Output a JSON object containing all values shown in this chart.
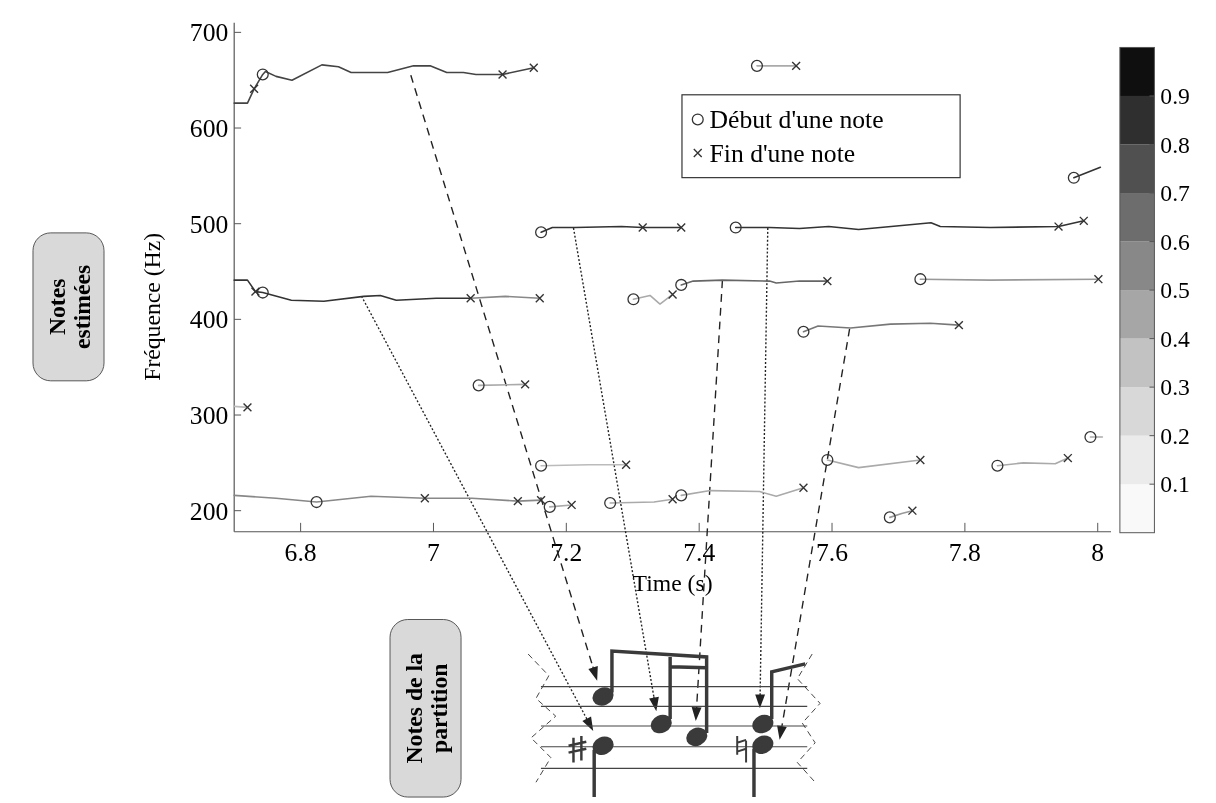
{
  "chart_data": {
    "type": "line",
    "xlabel": "Time (s)",
    "ylabel": "Fréquence (Hz)",
    "xlim": [
      6.7,
      8.02
    ],
    "ylim": [
      178,
      710
    ],
    "xticks": [
      6.8,
      7,
      7.2,
      7.4,
      7.6,
      7.8,
      8
    ],
    "yticks": [
      200,
      300,
      400,
      500,
      600,
      700
    ],
    "clim": [
      0,
      1
    ],
    "cticks": [
      0.1,
      0.2,
      0.3,
      0.4,
      0.5,
      0.6,
      0.7,
      0.8,
      0.9
    ],
    "legend": "top right",
    "grid": false,
    "annotations": [
      "Notes estimées",
      "Notes de la partition"
    ],
    "series": [
      {
        "type": "line",
        "color": "#444444",
        "x": [
          6.7,
          6.72,
          6.73,
          6.743,
          6.747,
          6.763,
          6.787,
          6.832,
          6.857,
          6.876,
          6.931,
          6.97,
          6.995,
          7.02,
          7.045,
          7.064,
          7.104,
          7.151
        ],
        "values": [
          626,
          626,
          641,
          656,
          659,
          654,
          650,
          666,
          664,
          658,
          658,
          665,
          665,
          658,
          658,
          656,
          656,
          663
        ]
      },
      {
        "type": "line",
        "color": "#333333",
        "x": [
          6.7,
          6.72,
          6.732,
          6.743,
          6.786,
          6.835,
          6.895,
          6.92,
          6.944,
          7.004,
          7.056
        ],
        "values": [
          441,
          441,
          429,
          428,
          420,
          419,
          424,
          425,
          420,
          422,
          422
        ]
      },
      {
        "type": "line",
        "color": "#888888",
        "x": [
          7.056,
          7.108,
          7.16
        ],
        "values": [
          422,
          424,
          422
        ]
      },
      {
        "type": "line",
        "color": "#aaaaaa",
        "x": [
          7.487,
          7.546
        ],
        "values": [
          665,
          665
        ]
      },
      {
        "type": "line",
        "color": "#333333",
        "x": [
          7.162,
          7.179,
          7.213,
          7.283,
          7.315,
          7.373
        ],
        "values": [
          491,
          496,
          496,
          497,
          496,
          496
        ]
      },
      {
        "type": "line",
        "color": "#333333",
        "x": [
          7.455,
          7.506,
          7.551,
          7.595,
          7.64,
          7.689,
          7.749,
          7.763,
          7.838,
          7.941,
          7.979
        ],
        "values": [
          496,
          496,
          495,
          497,
          494,
          497,
          501,
          497,
          496,
          497,
          503
        ]
      },
      {
        "type": "line",
        "color": "#333333",
        "x": [
          7.964,
          8.004
        ],
        "values": [
          548,
          559
        ]
      },
      {
        "type": "line",
        "color": "#666666",
        "x": [
          7.373,
          7.391,
          7.435,
          7.506,
          7.516,
          7.551,
          7.593
        ],
        "values": [
          436,
          440,
          441,
          440,
          438,
          440,
          440
        ]
      },
      {
        "type": "line",
        "color": "#999999",
        "x": [
          7.733,
          7.838,
          8.001
        ],
        "values": [
          442,
          441,
          442
        ]
      },
      {
        "type": "line",
        "color": "#aaaaaa",
        "x": [
          7.301,
          7.326,
          7.341,
          7.36
        ],
        "values": [
          421,
          425,
          416,
          426
        ]
      },
      {
        "type": "line",
        "color": "#777777",
        "x": [
          7.557,
          7.579,
          7.628,
          7.688,
          7.748,
          7.791
        ],
        "values": [
          387,
          393,
          391,
          395,
          396,
          394
        ]
      },
      {
        "type": "line",
        "color": "#aaaaaa",
        "x": [
          7.068,
          7.138
        ],
        "values": [
          331,
          332
        ]
      },
      {
        "type": "line",
        "color": "#bbbbbb",
        "x": [
          6.7,
          6.72
        ],
        "values": [
          309,
          308
        ]
      },
      {
        "type": "line",
        "color": "#bbbbbb",
        "x": [
          7.162,
          7.234,
          7.29
        ],
        "values": [
          247,
          248,
          248
        ]
      },
      {
        "type": "line",
        "color": "#aaaaaa",
        "x": [
          7.593,
          7.64,
          7.733
        ],
        "values": [
          253,
          245,
          253
        ]
      },
      {
        "type": "line",
        "color": "#aaaaaa",
        "x": [
          7.849,
          7.888,
          7.936,
          7.955
        ],
        "values": [
          247,
          250,
          249,
          255
        ]
      },
      {
        "type": "line",
        "color": "#aaaaaa",
        "x": [
          7.989,
          8.007
        ],
        "values": [
          277,
          277
        ]
      },
      {
        "type": "line",
        "color": "#888888",
        "x": [
          6.7,
          6.763,
          6.824,
          6.906,
          6.987,
          7.058,
          7.127,
          7.162
        ],
        "values": [
          216,
          213,
          209,
          215,
          213,
          213,
          210,
          211
        ]
      },
      {
        "type": "line",
        "color": "#aaaaaa",
        "x": [
          7.175,
          7.208
        ],
        "values": [
          204,
          206
        ]
      },
      {
        "type": "line",
        "color": "#aaaaaa",
        "x": [
          7.266,
          7.332,
          7.36
        ],
        "values": [
          208,
          209,
          212
        ]
      },
      {
        "type": "line",
        "color": "#aaaaaa",
        "x": [
          7.373,
          7.417,
          7.491,
          7.516,
          7.557
        ],
        "values": [
          216,
          221,
          220,
          215,
          224
        ]
      },
      {
        "type": "line",
        "color": "#999999",
        "x": [
          7.687,
          7.705,
          7.721
        ],
        "values": [
          193,
          197,
          200
        ]
      },
      {
        "type": "scatter",
        "marker": "circle",
        "name": "Début d'une note",
        "color": "#333333",
        "x": [
          6.743,
          6.743,
          6.824,
          7.068,
          7.162,
          7.162,
          7.175,
          7.266,
          7.301,
          7.373,
          7.373,
          7.455,
          7.487,
          7.557,
          7.593,
          7.687,
          7.733,
          7.849,
          7.964,
          7.989
        ],
        "values": [
          656,
          428,
          209,
          331,
          491,
          247,
          204,
          208,
          421,
          436,
          216,
          496,
          665,
          387,
          253,
          193,
          442,
          247,
          548,
          277
        ]
      },
      {
        "type": "scatter",
        "marker": "cross",
        "name": "Fin d'une note",
        "color": "#333333",
        "x": [
          6.73,
          6.732,
          6.72,
          6.987,
          7.056,
          7.104,
          7.127,
          7.138,
          7.151,
          7.16,
          7.162,
          7.208,
          7.29,
          7.315,
          7.36,
          7.36,
          7.373,
          7.546,
          7.557,
          7.593,
          7.721,
          7.733,
          7.791,
          7.941,
          7.955,
          7.979,
          8.001
        ],
        "values": [
          641,
          429,
          308,
          213,
          422,
          656,
          210,
          332,
          663,
          422,
          211,
          206,
          248,
          496,
          426,
          212,
          496,
          665,
          224,
          440,
          200,
          253,
          394,
          497,
          255,
          503,
          442
        ]
      }
    ]
  }
}
